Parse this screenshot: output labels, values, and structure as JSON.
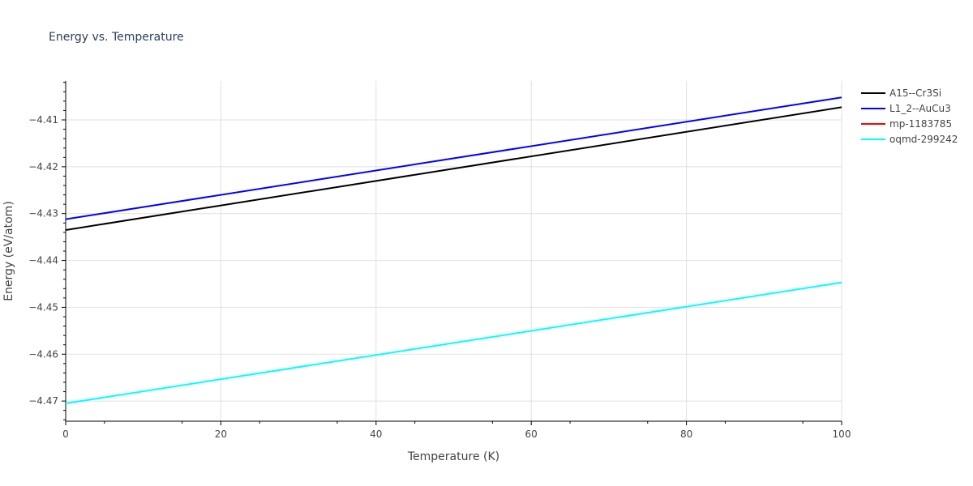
{
  "chart_data": {
    "type": "line",
    "title": "Energy vs. Temperature",
    "xlabel": "Temperature (K)",
    "ylabel": "Energy (eV/atom)",
    "xlim": [
      0,
      100
    ],
    "ylim": [
      -4.4743,
      -4.4017
    ],
    "x_ticks": [
      0,
      20,
      40,
      60,
      80,
      100
    ],
    "x_tick_labels": [
      "0",
      "20",
      "40",
      "60",
      "80",
      "100"
    ],
    "y_ticks": [
      -4.47,
      -4.46,
      -4.45,
      -4.44,
      -4.43,
      -4.42,
      -4.41
    ],
    "y_tick_labels": [
      "−4.47",
      "−4.46",
      "−4.45",
      "−4.44",
      "−4.43",
      "−4.42",
      "−4.41"
    ],
    "grid": true,
    "legend_position": "top-right",
    "series": [
      {
        "name": "A15--Cr3Si",
        "color": "#000000",
        "x": [
          0,
          100
        ],
        "y": [
          -4.4335,
          -4.4073
        ]
      },
      {
        "name": "L1_2--AuCu3",
        "color": "#0000ff",
        "x": [
          0,
          100
        ],
        "y": [
          -4.4312,
          -4.4052
        ]
      },
      {
        "name": "mp-1183785",
        "color": "#ff0000",
        "x": [],
        "y": []
      },
      {
        "name": "oqmd-299242",
        "color": "#00ffff",
        "x": [
          0,
          100
        ],
        "y": [
          -4.4705,
          -4.4447
        ]
      }
    ]
  }
}
